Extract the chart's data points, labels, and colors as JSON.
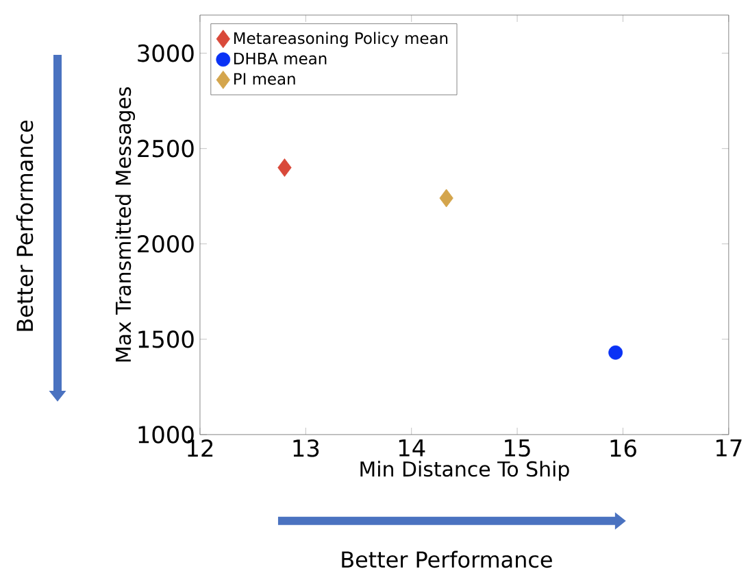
{
  "chart_data": {
    "type": "scatter",
    "xlabel": "Min Distance To Ship",
    "ylabel": "Max Transmitted Messages",
    "xlim": [
      12,
      17
    ],
    "ylim": [
      1000,
      3200
    ],
    "xticks": [
      12,
      13,
      14,
      15,
      16,
      17
    ],
    "yticks": [
      1000,
      1500,
      2000,
      2500,
      3000
    ],
    "series": [
      {
        "name": "Metareasoning Policy mean",
        "color": "#d9493a",
        "marker": "diamond",
        "x": [
          12.8
        ],
        "values": [
          2400
        ]
      },
      {
        "name": "DHBA mean",
        "color": "#0a32f5",
        "marker": "circle",
        "x": [
          15.93
        ],
        "values": [
          1430
        ]
      },
      {
        "name": "PI mean",
        "color": "#d4a54c",
        "marker": "diamond",
        "x": [
          14.33
        ],
        "values": [
          2240
        ]
      }
    ],
    "legend": "top left",
    "grid": false,
    "annotations": [
      "Better Performance",
      "Better Performance"
    ]
  }
}
